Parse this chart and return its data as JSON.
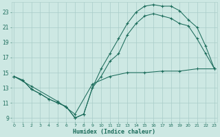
{
  "xlabel": "Humidex (Indice chaleur)",
  "bg_color": "#cde8e3",
  "grid_color": "#a8ccc8",
  "line_color": "#1a6b5a",
  "xlim": [
    -0.3,
    23.3
  ],
  "ylim": [
    8.5,
    24.3
  ],
  "yticks": [
    9,
    11,
    13,
    15,
    17,
    19,
    21,
    23
  ],
  "xticks": [
    0,
    1,
    2,
    3,
    4,
    5,
    6,
    7,
    8,
    9,
    10,
    11,
    12,
    13,
    14,
    15,
    16,
    17,
    18,
    19,
    20,
    21,
    22,
    23
  ],
  "series": [
    {
      "x": [
        0,
        1,
        2,
        3,
        4,
        5,
        6,
        7,
        8,
        9,
        10,
        11,
        12,
        13,
        14,
        15,
        16,
        17,
        18,
        19,
        20,
        21,
        22,
        23
      ],
      "y": [
        14.5,
        14.0,
        12.8,
        12.2,
        11.5,
        11.0,
        10.5,
        9.0,
        9.5,
        13.0,
        15.5,
        17.5,
        19.5,
        21.5,
        23.0,
        23.8,
        24.0,
        23.8,
        23.8,
        23.2,
        22.0,
        21.0,
        18.5,
        15.5
      ]
    },
    {
      "x": [
        0,
        1,
        2,
        3,
        4,
        5,
        6,
        7,
        8,
        9,
        10,
        11,
        12,
        13,
        14,
        15,
        16,
        17,
        18,
        19,
        20,
        21,
        22,
        23
      ],
      "y": [
        14.5,
        14.0,
        12.8,
        12.2,
        11.5,
        11.0,
        10.5,
        9.0,
        9.5,
        13.0,
        14.5,
        16.5,
        17.5,
        20.0,
        21.5,
        22.5,
        22.8,
        22.5,
        22.2,
        21.5,
        21.2,
        19.5,
        17.5,
        15.5
      ]
    },
    {
      "x": [
        0,
        2,
        5,
        7,
        9,
        11,
        13,
        15,
        17,
        19,
        21,
        23
      ],
      "y": [
        14.5,
        13.2,
        11.2,
        9.5,
        13.5,
        14.5,
        15.0,
        15.0,
        15.2,
        15.2,
        15.5,
        15.5
      ]
    }
  ],
  "figsize": [
    3.2,
    2.0
  ],
  "dpi": 100
}
